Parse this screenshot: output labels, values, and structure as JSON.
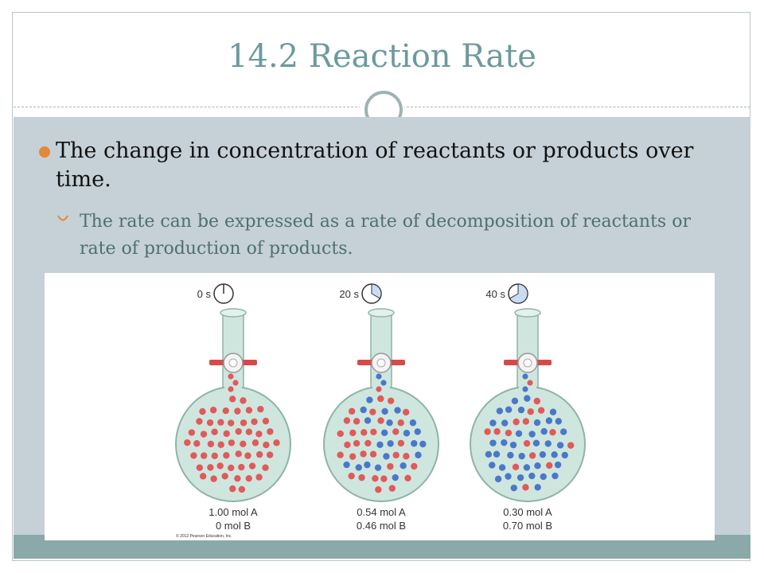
{
  "slide": {
    "title": "14.2 Reaction Rate",
    "bullet_main": "The change in concentration of reactants or products over time.",
    "bullet_sub": "The rate can be expressed as a rate of decomposition of reactants or rate of production of products."
  },
  "figure": {
    "flasks": [
      {
        "time_label": "0 s",
        "elapsed_fraction": 0.0,
        "mol_a": "1.00 mol A",
        "mol_b": "0 mol B",
        "fraction_b": 0.0
      },
      {
        "time_label": "20 s",
        "elapsed_fraction": 0.333,
        "mol_a": "0.54 mol A",
        "mol_b": "0.46 mol B",
        "fraction_b": 0.46
      },
      {
        "time_label": "40 s",
        "elapsed_fraction": 0.667,
        "mol_a": "0.30 mol A",
        "mol_b": "0.70 mol B",
        "fraction_b": 0.7
      }
    ],
    "copyright": "© 2012 Pearson Education, Inc.",
    "colors": {
      "molecule_a": "#e05a5a",
      "molecule_b": "#4a78c8",
      "flask_glass": "#cfe6df",
      "stopcock": "#d64a4a",
      "clock_fill": "#c9dcf3"
    }
  }
}
